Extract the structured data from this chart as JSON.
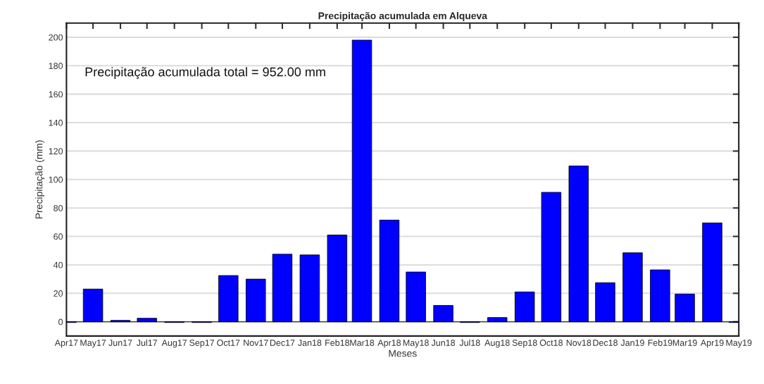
{
  "chart_data": {
    "type": "bar",
    "title": "Precipitação acumulada em Alqueva",
    "xlabel": "Meses",
    "ylabel": "Precipitação (mm)",
    "x": [
      "2017-04",
      "2017-05",
      "2017-06",
      "2017-07",
      "2017-08",
      "2017-09",
      "2017-10",
      "2017-11",
      "2017-12",
      "2018-01",
      "2018-02",
      "2018-03",
      "2018-04",
      "2018-05",
      "2018-06",
      "2018-07",
      "2018-08",
      "2018-09",
      "2018-10",
      "2018-11",
      "2018-12",
      "2019-01",
      "2019-02",
      "2019-03",
      "2019-04",
      "2019-05"
    ],
    "values": [
      -0.5,
      23,
      1,
      2.5,
      -0.5,
      -0.5,
      32.5,
      30,
      47.5,
      47,
      61,
      198,
      71.5,
      35,
      11.5,
      -0.5,
      3,
      21,
      91,
      109.5,
      27.5,
      48.5,
      36.5,
      19.5,
      69.5,
      -0.5
    ],
    "color": "#0000ff",
    "xlim": [
      "2017-04",
      "2019-05"
    ],
    "xticks": [
      {
        "value": "2017-04",
        "label": "Apr17"
      },
      {
        "value": "2017-05",
        "label": "May17"
      },
      {
        "value": "2017-06",
        "label": "Jun17"
      },
      {
        "value": "2017-07",
        "label": "Jul17"
      },
      {
        "value": "2017-08",
        "label": "Aug17"
      },
      {
        "value": "2017-09",
        "label": "Sep17"
      },
      {
        "value": "2017-10",
        "label": "Oct17"
      },
      {
        "value": "2017-11",
        "label": "Nov17"
      },
      {
        "value": "2017-12",
        "label": "Dec17"
      },
      {
        "value": "2018-01",
        "label": "Jan18"
      },
      {
        "value": "2018-02",
        "label": "Feb18"
      },
      {
        "value": "2018-03",
        "label": "Mar18"
      },
      {
        "value": "2018-04",
        "label": "Apr18"
      },
      {
        "value": "2018-05",
        "label": "May18"
      },
      {
        "value": "2018-06",
        "label": "Jun18"
      },
      {
        "value": "2018-07",
        "label": "Jul18"
      },
      {
        "value": "2018-08",
        "label": "Aug18"
      },
      {
        "value": "2018-09",
        "label": "Sep18"
      },
      {
        "value": "2018-10",
        "label": "Oct18"
      },
      {
        "value": "2018-11",
        "label": "Nov18"
      },
      {
        "value": "2018-12",
        "label": "Dec18"
      },
      {
        "value": "2019-01",
        "label": "Jan19"
      },
      {
        "value": "2019-02",
        "label": "Feb19"
      },
      {
        "value": "2019-03",
        "label": "Mar19"
      },
      {
        "value": "2019-04",
        "label": "Apr19"
      },
      {
        "value": "2019-05",
        "label": "May19"
      }
    ],
    "ylim": [
      -10,
      210
    ],
    "yticks": [
      0,
      20,
      40,
      60,
      80,
      100,
      120,
      140,
      160,
      180,
      200
    ],
    "grid": "y",
    "annotations": [
      "Precipitação acumulada total = 952.00 mm"
    ]
  }
}
